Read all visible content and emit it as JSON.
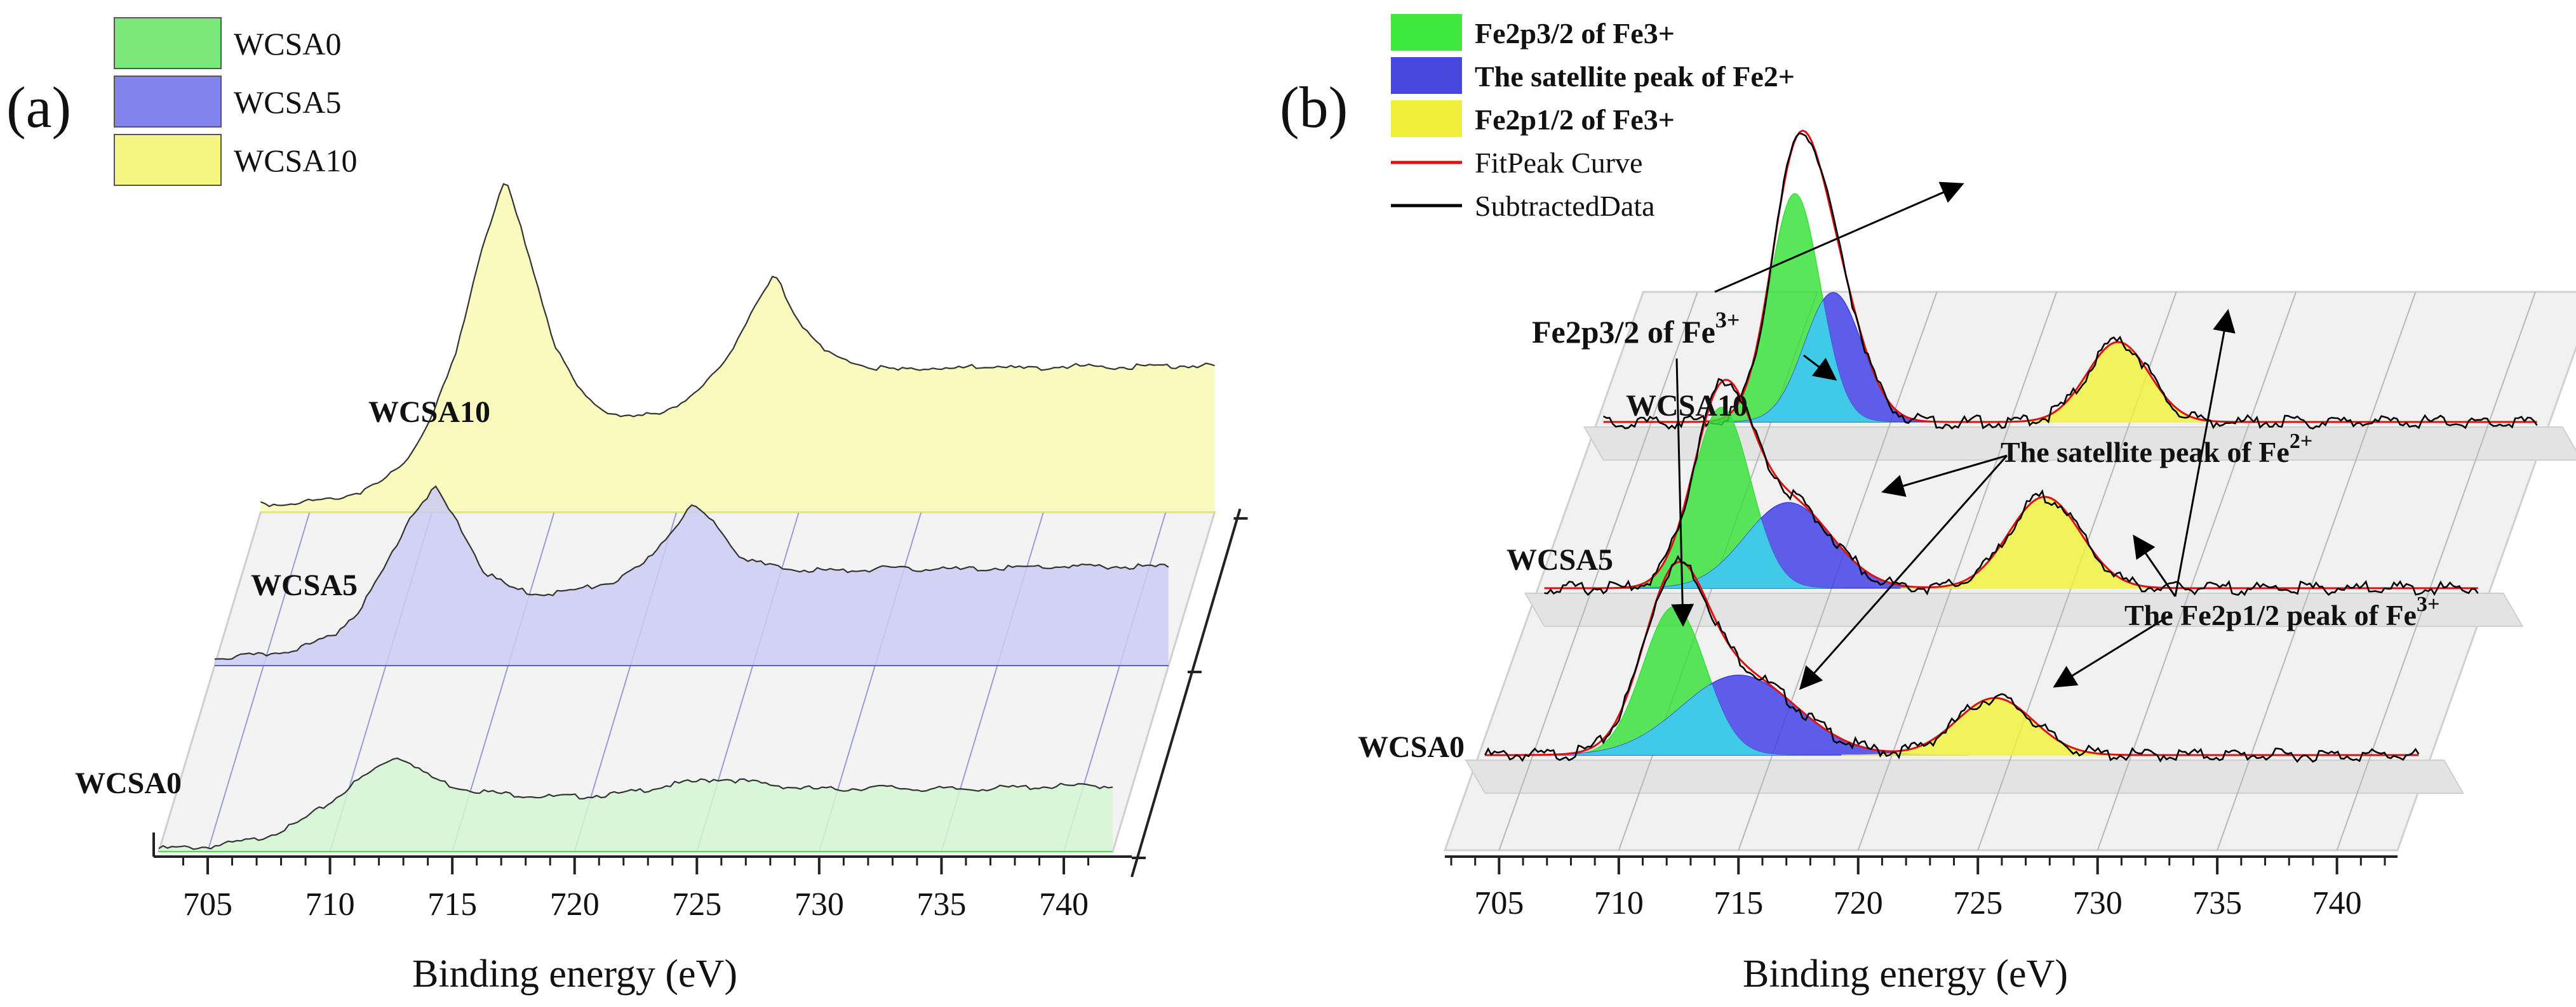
{
  "figure": {
    "panel_a_label": "(a)",
    "panel_b_label": "(b)"
  },
  "chart_data": [
    {
      "type": "area",
      "panel": "(a)",
      "title": "",
      "xlabel": "Binding energy (eV)",
      "ylabel": "",
      "xlim": [
        703,
        742
      ],
      "xticks": [
        705,
        710,
        715,
        720,
        725,
        730,
        735,
        740
      ],
      "legend": {
        "placement": "top-left",
        "entries": [
          {
            "name": "WCSA0",
            "color": "#4ee04e"
          },
          {
            "name": "WCSA5",
            "color": "#5a5ae8"
          },
          {
            "name": "WCSA10",
            "color": "#f2f25a"
          }
        ]
      },
      "series": [
        {
          "name": "WCSA0",
          "fill": "#d3f6d3",
          "edge": "#4ee04e",
          "x": [
            703,
            705,
            707,
            708.5,
            710,
            711,
            712,
            712.6,
            713.2,
            714,
            715,
            716,
            717,
            718,
            719,
            720,
            721,
            722,
            723,
            724,
            725,
            726,
            727,
            728,
            729,
            730,
            731,
            732,
            733,
            734,
            735,
            736,
            738,
            740,
            742
          ],
          "y": [
            0.02,
            0.03,
            0.08,
            0.17,
            0.32,
            0.45,
            0.56,
            0.62,
            0.6,
            0.5,
            0.43,
            0.4,
            0.38,
            0.37,
            0.36,
            0.36,
            0.37,
            0.38,
            0.41,
            0.44,
            0.46,
            0.48,
            0.46,
            0.44,
            0.42,
            0.41,
            0.41,
            0.42,
            0.42,
            0.41,
            0.41,
            0.41,
            0.42,
            0.43,
            0.43
          ]
        },
        {
          "name": "WCSA5",
          "fill": "#cbcbf3",
          "edge": "#5a5ae8",
          "x": [
            703,
            704,
            705,
            706,
            707,
            708,
            709,
            710,
            711,
            712,
            713,
            714,
            715,
            715.8,
            716.5,
            717.5,
            718.5,
            719.5,
            720.5,
            721.5,
            722.5,
            723.5,
            724.5,
            725.5,
            726.5,
            727.5,
            728.5,
            729.5,
            730.5,
            731.5,
            732.5,
            733.5,
            735,
            737,
            739,
            742
          ],
          "y": [
            0.05,
            0.06,
            0.07,
            0.1,
            0.14,
            0.22,
            0.38,
            0.66,
            0.98,
            1.17,
            0.92,
            0.62,
            0.52,
            0.48,
            0.47,
            0.49,
            0.52,
            0.56,
            0.66,
            0.85,
            1.05,
            0.93,
            0.72,
            0.66,
            0.63,
            0.63,
            0.62,
            0.63,
            0.64,
            0.63,
            0.64,
            0.63,
            0.64,
            0.65,
            0.65,
            0.65
          ]
        },
        {
          "name": "WCSA10",
          "fill": "#f9f9b4",
          "edge": "#e8e860",
          "x": [
            703,
            704,
            705,
            706,
            707,
            708,
            709,
            710,
            711,
            712,
            713,
            714,
            715,
            716,
            717,
            718,
            719,
            720,
            721,
            722,
            723,
            724,
            725,
            726,
            727,
            728,
            729,
            730,
            731,
            732,
            733,
            734,
            735,
            736,
            738,
            740,
            742
          ],
          "y": [
            0.05,
            0.06,
            0.07,
            0.09,
            0.13,
            0.2,
            0.35,
            0.62,
            1.05,
            1.72,
            2.18,
            1.68,
            1.1,
            0.8,
            0.67,
            0.62,
            0.64,
            0.7,
            0.8,
            1.0,
            1.28,
            1.56,
            1.26,
            1.06,
            0.99,
            0.95,
            0.93,
            0.95,
            0.94,
            0.95,
            0.96,
            0.94,
            0.95,
            0.96,
            0.95,
            0.96,
            0.96
          ]
        }
      ],
      "y_labels": [
        "WCSA10",
        "WCSA5",
        "WCSA0"
      ]
    },
    {
      "type": "line",
      "panel": "(b)",
      "title": "",
      "xlabel": "Binding energy (eV)",
      "ylabel": "",
      "xlim": [
        703,
        742
      ],
      "xticks": [
        705,
        710,
        715,
        720,
        725,
        730,
        735,
        740
      ],
      "legend": {
        "placement": "top-left",
        "entries": [
          {
            "name": "Fe2p3/2 of Fe3+",
            "kind": "area",
            "color": "#3ee83e"
          },
          {
            "name": "The satellite peak of Fe2+",
            "kind": "area",
            "color": "#4848e0"
          },
          {
            "name": "Fe2p1/2 of Fe3+",
            "kind": "area",
            "color": "#f0f03c"
          },
          {
            "name": "FitPeak Curve",
            "kind": "line",
            "color": "#e01010"
          },
          {
            "name": "SubtractedData",
            "kind": "line",
            "color": "#000000"
          }
        ]
      },
      "samples": [
        {
          "name": "WCSA0",
          "peaks": [
            {
              "component": "Fe2p3/2 of Fe3+",
              "center": 710.9,
              "height": 0.78,
              "sigma": 1.3
            },
            {
              "component": "The satellite peak of Fe2+",
              "center": 713.6,
              "height": 0.42,
              "sigma": 2.4
            },
            {
              "component": "Fe2p1/2 of Fe3+",
              "center": 724.3,
              "height": 0.3,
              "sigma": 1.6
            }
          ]
        },
        {
          "name": "WCSA5",
          "peaks": [
            {
              "component": "Fe2p3/2 of Fe3+",
              "center": 710.4,
              "height": 0.95,
              "sigma": 1.2
            },
            {
              "component": "The satellite peak of Fe2+",
              "center": 713.2,
              "height": 0.45,
              "sigma": 1.8
            },
            {
              "component": "Fe2p1/2 of Fe3+",
              "center": 723.9,
              "height": 0.48,
              "sigma": 1.5
            }
          ]
        },
        {
          "name": "WCSA10",
          "peaks": [
            {
              "component": "Fe2p3/2 of Fe3+",
              "center": 711.0,
              "height": 1.2,
              "sigma": 1.05
            },
            {
              "component": "The satellite peak of Fe2+",
              "center": 712.6,
              "height": 0.68,
              "sigma": 1.2
            },
            {
              "component": "Fe2p1/2 of Fe3+",
              "center": 724.5,
              "height": 0.42,
              "sigma": 1.3
            }
          ]
        }
      ],
      "annotations": {
        "fe3_p32": {
          "text": "Fe2p3/2 of Fe",
          "sup": "3+"
        },
        "satellite": {
          "text": "The satellite peak of Fe",
          "sup": "2+"
        },
        "fe3_p12": {
          "text": "The Fe2p1/2 peak of Fe",
          "sup": "3+"
        }
      }
    }
  ]
}
